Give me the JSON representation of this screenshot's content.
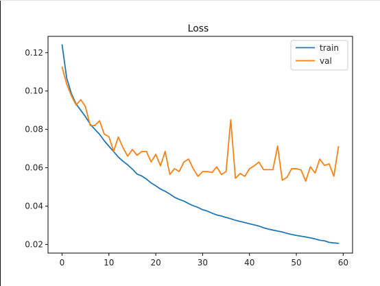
{
  "chart_data": {
    "type": "line",
    "title": "Loss",
    "xlabel": "",
    "ylabel": "",
    "xlim": [
      -3,
      62
    ],
    "ylim": [
      0.0155,
      0.1285
    ],
    "xticks": [
      0,
      10,
      20,
      30,
      40,
      50,
      60
    ],
    "yticks": [
      0.02,
      0.04,
      0.06,
      0.08,
      0.1,
      0.12
    ],
    "ytick_labels": [
      "0.02",
      "0.04",
      "0.06",
      "0.08",
      "0.10",
      "0.12"
    ],
    "grid": false,
    "legend_position": "top-right",
    "x": [
      0,
      1,
      2,
      3,
      4,
      5,
      6,
      7,
      8,
      9,
      10,
      11,
      12,
      13,
      14,
      15,
      16,
      17,
      18,
      19,
      20,
      21,
      22,
      23,
      24,
      25,
      26,
      27,
      28,
      29,
      30,
      31,
      32,
      33,
      34,
      35,
      36,
      37,
      38,
      39,
      40,
      41,
      42,
      43,
      44,
      45,
      46,
      47,
      48,
      49,
      50,
      51,
      52,
      53,
      54,
      55,
      56,
      57,
      58,
      59
    ],
    "series": [
      {
        "name": "train",
        "color": "#1f77b4",
        "values": [
          0.1241,
          0.1066,
          0.0986,
          0.0932,
          0.0899,
          0.0866,
          0.0827,
          0.08,
          0.0774,
          0.0741,
          0.0712,
          0.0684,
          0.0656,
          0.0634,
          0.0615,
          0.0593,
          0.0567,
          0.0557,
          0.0541,
          0.0521,
          0.0506,
          0.0489,
          0.0477,
          0.0463,
          0.0446,
          0.0435,
          0.0426,
          0.0413,
          0.0402,
          0.0393,
          0.0381,
          0.0374,
          0.0363,
          0.0354,
          0.0348,
          0.0341,
          0.0334,
          0.0326,
          0.032,
          0.0314,
          0.0308,
          0.0302,
          0.0296,
          0.0287,
          0.028,
          0.0275,
          0.027,
          0.0265,
          0.0258,
          0.0252,
          0.0247,
          0.0243,
          0.0239,
          0.0234,
          0.0229,
          0.0222,
          0.0219,
          0.0211,
          0.0208,
          0.0206
        ]
      },
      {
        "name": "val",
        "color": "#ff7f0e",
        "values": [
          0.1125,
          0.1035,
          0.0975,
          0.0927,
          0.0955,
          0.0917,
          0.082,
          0.082,
          0.0845,
          0.0775,
          0.0762,
          0.0685,
          0.076,
          0.0705,
          0.066,
          0.0695,
          0.0665,
          0.0685,
          0.0685,
          0.063,
          0.067,
          0.061,
          0.0685,
          0.0565,
          0.0595,
          0.058,
          0.063,
          0.0645,
          0.0595,
          0.0555,
          0.058,
          0.058,
          0.0575,
          0.0605,
          0.0565,
          0.058,
          0.085,
          0.0545,
          0.057,
          0.0555,
          0.0595,
          0.061,
          0.063,
          0.059,
          0.059,
          0.059,
          0.0713,
          0.0535,
          0.055,
          0.0595,
          0.0595,
          0.0588,
          0.053,
          0.0605,
          0.0572,
          0.0645,
          0.0612,
          0.062,
          0.0556,
          0.071
        ]
      }
    ]
  }
}
